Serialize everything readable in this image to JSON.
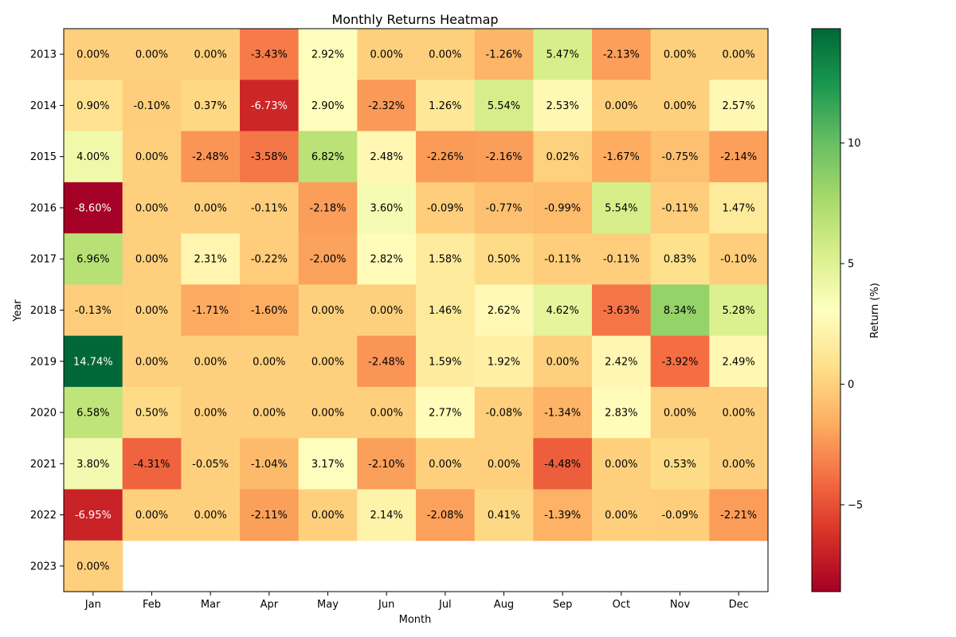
{
  "chart_data": {
    "type": "heatmap",
    "title": "Monthly Returns Heatmap",
    "xlabel": "Month",
    "ylabel": "Year",
    "colorbar_label": "Return (%)",
    "colormap": "RdYlGn",
    "vmin": -8.6,
    "vmax": 14.74,
    "colorbar_ticks": [
      -5,
      0,
      5,
      10
    ],
    "columns": [
      "Jan",
      "Feb",
      "Mar",
      "Apr",
      "May",
      "Jun",
      "Jul",
      "Aug",
      "Sep",
      "Oct",
      "Nov",
      "Dec"
    ],
    "rows": [
      "2013",
      "2014",
      "2015",
      "2016",
      "2017",
      "2018",
      "2019",
      "2020",
      "2021",
      "2022",
      "2023"
    ],
    "values": [
      [
        0.0,
        0.0,
        0.0,
        -3.43,
        2.92,
        0.0,
        0.0,
        -1.26,
        5.47,
        -2.13,
        0.0,
        0.0
      ],
      [
        0.9,
        -0.1,
        0.37,
        -6.73,
        2.9,
        -2.32,
        1.26,
        5.54,
        2.53,
        0.0,
        0.0,
        2.57
      ],
      [
        4.0,
        0.0,
        -2.48,
        -3.58,
        6.82,
        2.48,
        -2.26,
        -2.16,
        0.02,
        -1.67,
        -0.75,
        -2.14
      ],
      [
        -8.6,
        0.0,
        0.0,
        -0.11,
        -2.18,
        3.6,
        -0.09,
        -0.77,
        -0.99,
        5.54,
        -0.11,
        1.47
      ],
      [
        6.96,
        0.0,
        2.31,
        -0.22,
        -2.0,
        2.82,
        1.58,
        0.5,
        -0.11,
        -0.11,
        0.83,
        -0.1
      ],
      [
        -0.13,
        0.0,
        -1.71,
        -1.6,
        0.0,
        0.0,
        1.46,
        2.62,
        4.62,
        -3.63,
        8.34,
        5.28
      ],
      [
        14.74,
        0.0,
        0.0,
        0.0,
        0.0,
        -2.48,
        1.59,
        1.92,
        0.0,
        2.42,
        -3.92,
        2.49
      ],
      [
        6.58,
        0.5,
        0.0,
        0.0,
        0.0,
        0.0,
        2.77,
        -0.08,
        -1.34,
        2.83,
        0.0,
        0.0
      ],
      [
        3.8,
        -4.31,
        -0.05,
        -1.04,
        3.17,
        -2.1,
        0.0,
        0.0,
        -4.48,
        0.0,
        0.53,
        0.0
      ],
      [
        -6.95,
        0.0,
        0.0,
        -2.11,
        0.0,
        2.14,
        -2.08,
        0.41,
        -1.39,
        0.0,
        -0.09,
        -2.21
      ],
      [
        0.0,
        null,
        null,
        null,
        null,
        null,
        null,
        null,
        null,
        null,
        null,
        null
      ]
    ],
    "value_suffix": "%"
  }
}
